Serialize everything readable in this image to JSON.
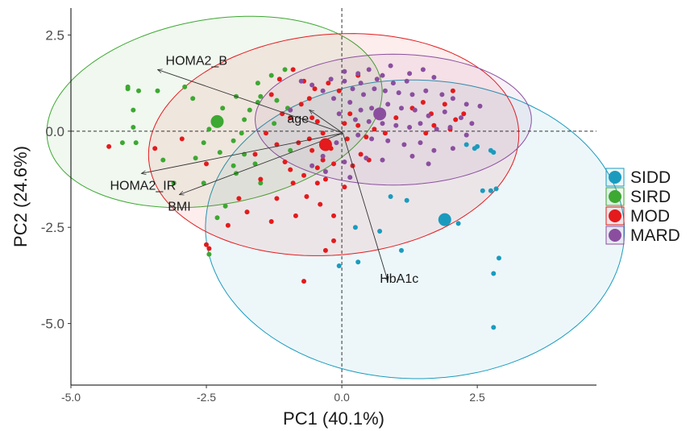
{
  "chart_data": {
    "type": "scatter",
    "subtype": "PCA biplot",
    "xlabel": "PC1 (40.1%)",
    "ylabel": "PC2 (24.6%)",
    "xlim": [
      -5.0,
      4.7
    ],
    "ylim": [
      -6.6,
      3.2
    ],
    "x_ticks": [
      -5.0,
      -2.5,
      0.0,
      2.5
    ],
    "x_tick_labels": [
      "-5.0",
      "-2.5",
      "0.0",
      "2.5"
    ],
    "y_ticks": [
      2.5,
      0.0,
      -2.5,
      -5.0
    ],
    "y_tick_labels": [
      "2.5",
      "0.0",
      "-2.5",
      "-5.0"
    ],
    "reference_lines": {
      "x": 0,
      "y": 0,
      "style": "dashed"
    },
    "grid": false,
    "legend_position": "right",
    "series": [
      {
        "name": "SIDD",
        "color": "#1A9BBE",
        "centroid": [
          1.9,
          -2.3
        ],
        "ellipse": {
          "cx": 1.35,
          "cy": -2.55,
          "rx": 3.9,
          "ry": 3.85,
          "angle_deg": -55
        },
        "points": [
          [
            2.3,
            -0.35
          ],
          [
            2.5,
            -0.4
          ],
          [
            2.45,
            -0.45
          ],
          [
            2.75,
            -0.5
          ],
          [
            2.8,
            -0.55
          ],
          [
            2.75,
            -1.55
          ],
          [
            2.85,
            -1.5
          ],
          [
            2.6,
            -1.55
          ],
          [
            2.15,
            -2.4
          ],
          [
            2.9,
            -3.3
          ],
          [
            2.8,
            -3.7
          ],
          [
            2.8,
            -5.1
          ],
          [
            1.1,
            -3.1
          ],
          [
            0.7,
            -2.6
          ],
          [
            0.25,
            -2.5
          ],
          [
            1.2,
            -1.8
          ],
          [
            0.9,
            -1.7
          ],
          [
            0.3,
            -3.4
          ],
          [
            -0.05,
            -3.5
          ]
        ]
      },
      {
        "name": "SIRD",
        "color": "#3DA832",
        "centroid": [
          -2.3,
          0.25
        ],
        "ellipse": {
          "cx": -2.35,
          "cy": 0.5,
          "rx": 3.2,
          "ry": 2.35,
          "angle_deg": 22
        },
        "points": [
          [
            -3.95,
            1.1
          ],
          [
            -3.95,
            1.15
          ],
          [
            -3.85,
            0.55
          ],
          [
            -3.85,
            0.1
          ],
          [
            -4.05,
            -0.3
          ],
          [
            -3.8,
            -0.3
          ],
          [
            -3.75,
            1.05
          ],
          [
            -3.4,
            1.05
          ],
          [
            -2.9,
            1.15
          ],
          [
            -2.75,
            0.85
          ],
          [
            -2.55,
            -0.3
          ],
          [
            -2.25,
            -0.55
          ],
          [
            -2.0,
            -0.25
          ],
          [
            -2.45,
            0.05
          ],
          [
            -1.8,
            0.3
          ],
          [
            -1.7,
            0.55
          ],
          [
            -1.5,
            0.9
          ],
          [
            -1.55,
            1.25
          ],
          [
            -1.3,
            1.45
          ],
          [
            -1.05,
            1.6
          ],
          [
            -1.55,
            0.75
          ],
          [
            -1.95,
            0.9
          ],
          [
            -2.2,
            0.6
          ],
          [
            -1.85,
            -0.05
          ],
          [
            -1.8,
            -0.6
          ],
          [
            -1.6,
            -0.85
          ],
          [
            -1.5,
            -1.35
          ],
          [
            -1.95,
            -1.1
          ],
          [
            -2.55,
            -1.35
          ],
          [
            -2.15,
            -1.95
          ],
          [
            -2.45,
            -3.2
          ],
          [
            -2.0,
            -0.9
          ],
          [
            -2.7,
            -0.7
          ],
          [
            -3.3,
            -0.75
          ],
          [
            -1.2,
            0.8
          ],
          [
            -1.0,
            0.6
          ],
          [
            -0.95,
            -0.5
          ],
          [
            -1.25,
            0.2
          ],
          [
            -3.1,
            -1.35
          ],
          [
            -2.3,
            -2.25
          ]
        ]
      },
      {
        "name": "MOD",
        "color": "#E41A1C",
        "centroid": [
          -0.3,
          -0.35
        ],
        "ellipse": {
          "cx": -0.15,
          "cy": -0.35,
          "rx": 3.45,
          "ry": 2.85,
          "angle_deg": 14
        },
        "points": [
          [
            -4.3,
            -0.4
          ],
          [
            -3.45,
            -0.45
          ],
          [
            -2.95,
            -0.2
          ],
          [
            -2.5,
            -2.95
          ],
          [
            -2.45,
            -3.05
          ],
          [
            -2.1,
            -2.45
          ],
          [
            -1.75,
            -2.1
          ],
          [
            -1.5,
            -1.25
          ],
          [
            -1.2,
            -1.75
          ],
          [
            -1.05,
            -0.8
          ],
          [
            -0.9,
            -1.35
          ],
          [
            -1.1,
            0.45
          ],
          [
            -1.15,
            1.35
          ],
          [
            -0.9,
            1.6
          ],
          [
            -0.7,
            1.3
          ],
          [
            -0.5,
            1.1
          ],
          [
            -0.25,
            1.25
          ],
          [
            -0.75,
            0.7
          ],
          [
            -0.55,
            0.35
          ],
          [
            -0.45,
            0.25
          ],
          [
            -0.35,
            -0.05
          ],
          [
            -0.55,
            -0.5
          ],
          [
            -0.8,
            -0.3
          ],
          [
            -1.2,
            -0.35
          ],
          [
            -1.4,
            -0.05
          ],
          [
            -0.95,
            -1.0
          ],
          [
            -0.7,
            -1.15
          ],
          [
            -0.45,
            -1.35
          ],
          [
            -0.3,
            -1.25
          ],
          [
            -0.65,
            -1.7
          ],
          [
            -0.85,
            -2.2
          ],
          [
            -0.4,
            -1.9
          ],
          [
            -0.15,
            -2.2
          ],
          [
            -0.15,
            -2.85
          ],
          [
            -0.3,
            -3.1
          ],
          [
            -0.7,
            -3.9
          ],
          [
            -0.35,
            -0.75
          ],
          [
            -0.2,
            -0.45
          ],
          [
            0.05,
            0.2
          ],
          [
            0.15,
            0.45
          ],
          [
            0.1,
            -0.2
          ],
          [
            0.3,
            0.15
          ],
          [
            0.45,
            -0.15
          ],
          [
            0.6,
            0.05
          ],
          [
            0.8,
            -0.05
          ],
          [
            0.35,
            -0.6
          ],
          [
            0.5,
            -0.75
          ],
          [
            0.2,
            -0.9
          ],
          [
            -0.15,
            -0.85
          ],
          [
            1.0,
            0.35
          ],
          [
            1.3,
            0.6
          ],
          [
            1.5,
            0.75
          ],
          [
            1.65,
            0.45
          ],
          [
            1.9,
            0.7
          ],
          [
            2.05,
            1.05
          ],
          [
            2.25,
            0.45
          ],
          [
            2.0,
            0.05
          ],
          [
            1.7,
            0.15
          ],
          [
            1.55,
            -0.05
          ],
          [
            2.1,
            0.3
          ],
          [
            -1.3,
            -2.35
          ],
          [
            -1.9,
            -1.75
          ],
          [
            -2.5,
            -0.85
          ],
          [
            -0.6,
            0.85
          ],
          [
            -0.05,
            1.05
          ],
          [
            0.3,
            1.45
          ],
          [
            -1.6,
            -0.6
          ],
          [
            -1.3,
            0.95
          ],
          [
            -0.95,
            0.35
          ],
          [
            -0.45,
            -0.95
          ],
          [
            0.05,
            -1.45
          ],
          [
            -0.6,
            -0.2
          ]
        ]
      },
      {
        "name": "MARD",
        "color": "#8B4E9F",
        "centroid": [
          0.7,
          0.45
        ],
        "ellipse": {
          "cx": 0.95,
          "cy": 0.3,
          "rx": 2.55,
          "ry": 1.7,
          "angle_deg": 0
        },
        "points": [
          [
            -0.2,
            1.35
          ],
          [
            0.05,
            1.55
          ],
          [
            0.3,
            1.5
          ],
          [
            0.5,
            1.6
          ],
          [
            0.75,
            1.45
          ],
          [
            0.9,
            1.7
          ],
          [
            1.25,
            1.5
          ],
          [
            1.5,
            1.6
          ],
          [
            1.7,
            1.4
          ],
          [
            0.2,
            1.1
          ],
          [
            0.4,
            0.95
          ],
          [
            0.6,
            1.1
          ],
          [
            0.8,
            1.05
          ],
          [
            1.05,
            1.0
          ],
          [
            1.3,
            0.95
          ],
          [
            1.55,
            1.05
          ],
          [
            1.85,
            0.95
          ],
          [
            2.05,
            0.85
          ],
          [
            2.3,
            0.7
          ],
          [
            2.55,
            0.65
          ],
          [
            0.15,
            0.75
          ],
          [
            0.35,
            0.55
          ],
          [
            0.55,
            0.6
          ],
          [
            0.85,
            0.7
          ],
          [
            1.1,
            0.6
          ],
          [
            1.35,
            0.55
          ],
          [
            1.6,
            0.4
          ],
          [
            1.9,
            0.5
          ],
          [
            2.2,
            0.35
          ],
          [
            2.4,
            0.2
          ],
          [
            0.25,
            0.3
          ],
          [
            0.5,
            0.25
          ],
          [
            0.75,
            0.2
          ],
          [
            1.0,
            0.15
          ],
          [
            1.25,
            0.1
          ],
          [
            1.45,
            0.2
          ],
          [
            1.75,
            0.05
          ],
          [
            2.0,
            0.1
          ],
          [
            2.3,
            -0.1
          ],
          [
            0.3,
            -0.1
          ],
          [
            0.55,
            -0.2
          ],
          [
            0.85,
            -0.25
          ],
          [
            1.15,
            -0.35
          ],
          [
            1.45,
            -0.3
          ],
          [
            1.7,
            -0.5
          ],
          [
            2.05,
            -0.45
          ],
          [
            -0.1,
            -0.3
          ],
          [
            -0.35,
            -0.65
          ],
          [
            -0.55,
            -0.9
          ],
          [
            -0.3,
            -1.05
          ],
          [
            0.05,
            -0.8
          ],
          [
            0.15,
            -1.2
          ],
          [
            0.45,
            -0.7
          ],
          [
            0.75,
            -0.75
          ],
          [
            -0.05,
            0.45
          ],
          [
            -0.15,
            0.85
          ],
          [
            -0.35,
            1.05
          ],
          [
            -0.55,
            1.2
          ],
          [
            -0.75,
            1.3
          ],
          [
            -0.95,
            0.55
          ],
          [
            1.3,
            -0.65
          ],
          [
            1.6,
            -0.85
          ],
          [
            0.05,
            1.3
          ],
          [
            0.35,
            1.25
          ],
          [
            0.65,
            1.35
          ],
          [
            0.95,
            1.25
          ],
          [
            1.2,
            1.3
          ]
        ]
      }
    ],
    "loadings": [
      {
        "label": "HOMA2_B",
        "x": -3.4,
        "y": 1.6
      },
      {
        "label": "HOMA2_IR",
        "x": -3.7,
        "y": -1.1
      },
      {
        "label": "BMI",
        "x": -3.0,
        "y": -1.65
      },
      {
        "label": "age",
        "x": -0.6,
        "y": 0.55
      },
      {
        "label": "HbA1c",
        "x": 0.85,
        "y": -3.9
      }
    ]
  }
}
